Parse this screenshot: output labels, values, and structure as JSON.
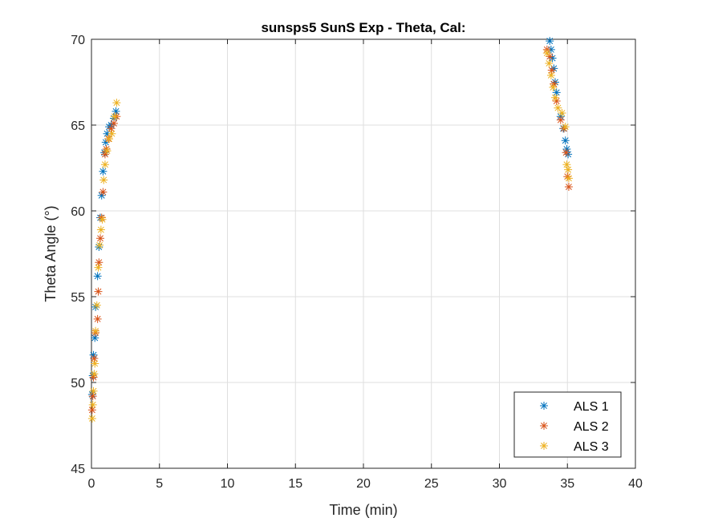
{
  "chart_data": {
    "type": "scatter",
    "title": "sunsps5 SunS Exp - Theta, Cal:",
    "xlabel": "Time (min)",
    "ylabel": "Theta Angle (°)",
    "xlim": [
      0,
      40
    ],
    "ylim": [
      45,
      70
    ],
    "xticks": [
      "0",
      "5",
      "10",
      "15",
      "20",
      "25",
      "30",
      "35",
      "40"
    ],
    "yticks": [
      "45",
      "50",
      "55",
      "60",
      "65",
      "70"
    ],
    "grid": true,
    "legend_position": "bottom-right",
    "marker": "asterisk",
    "series": [
      {
        "name": "ALS 1",
        "color": "#0072BD",
        "points": [
          [
            0.05,
            49.3
          ],
          [
            0.1,
            50.4
          ],
          [
            0.15,
            51.6
          ],
          [
            0.25,
            52.6
          ],
          [
            0.3,
            54.4
          ],
          [
            0.45,
            56.2
          ],
          [
            0.55,
            57.9
          ],
          [
            0.65,
            59.6
          ],
          [
            0.75,
            60.9
          ],
          [
            0.85,
            62.3
          ],
          [
            0.95,
            63.4
          ],
          [
            1.05,
            64.0
          ],
          [
            1.15,
            64.5
          ],
          [
            1.3,
            64.9
          ],
          [
            1.45,
            65.0
          ],
          [
            1.65,
            65.4
          ],
          [
            1.8,
            65.8
          ],
          [
            33.7,
            69.9
          ],
          [
            33.8,
            69.4
          ],
          [
            33.9,
            68.9
          ],
          [
            34.0,
            68.3
          ],
          [
            34.1,
            67.5
          ],
          [
            34.2,
            66.9
          ],
          [
            34.5,
            65.5
          ],
          [
            34.7,
            64.8
          ],
          [
            34.85,
            64.1
          ],
          [
            34.95,
            63.6
          ],
          [
            35.05,
            63.3
          ]
        ]
      },
      {
        "name": "ALS 2",
        "color": "#D95319",
        "points": [
          [
            0.05,
            48.4
          ],
          [
            0.1,
            49.2
          ],
          [
            0.15,
            50.3
          ],
          [
            0.2,
            51.4
          ],
          [
            0.3,
            52.9
          ],
          [
            0.45,
            53.7
          ],
          [
            0.5,
            55.3
          ],
          [
            0.55,
            57.0
          ],
          [
            0.65,
            58.4
          ],
          [
            0.75,
            59.6
          ],
          [
            0.85,
            61.1
          ],
          [
            1.0,
            63.3
          ],
          [
            1.1,
            63.6
          ],
          [
            1.25,
            64.2
          ],
          [
            1.45,
            64.8
          ],
          [
            1.65,
            65.1
          ],
          [
            1.85,
            65.5
          ],
          [
            33.5,
            69.4
          ],
          [
            33.7,
            69.0
          ],
          [
            33.85,
            68.2
          ],
          [
            34.0,
            67.4
          ],
          [
            34.2,
            66.4
          ],
          [
            34.5,
            65.3
          ],
          [
            34.75,
            64.8
          ],
          [
            34.9,
            63.4
          ],
          [
            35.0,
            62.0
          ],
          [
            35.1,
            61.4
          ]
        ]
      },
      {
        "name": "ALS 3",
        "color": "#EDB120",
        "points": [
          [
            0.05,
            47.9
          ],
          [
            0.1,
            48.7
          ],
          [
            0.15,
            49.5
          ],
          [
            0.2,
            50.5
          ],
          [
            0.25,
            51.1
          ],
          [
            0.3,
            53.0
          ],
          [
            0.4,
            54.5
          ],
          [
            0.5,
            56.7
          ],
          [
            0.6,
            58.0
          ],
          [
            0.7,
            58.9
          ],
          [
            0.8,
            59.5
          ],
          [
            0.9,
            61.8
          ],
          [
            1.0,
            62.7
          ],
          [
            1.15,
            63.5
          ],
          [
            1.3,
            64.2
          ],
          [
            1.5,
            64.5
          ],
          [
            1.7,
            65.5
          ],
          [
            1.85,
            66.3
          ],
          [
            33.5,
            69.2
          ],
          [
            33.65,
            68.6
          ],
          [
            33.8,
            67.9
          ],
          [
            33.95,
            67.2
          ],
          [
            34.1,
            66.6
          ],
          [
            34.3,
            66.0
          ],
          [
            34.6,
            65.7
          ],
          [
            34.85,
            64.9
          ],
          [
            34.95,
            62.7
          ],
          [
            35.05,
            62.4
          ],
          [
            35.1,
            61.9
          ]
        ]
      }
    ]
  }
}
